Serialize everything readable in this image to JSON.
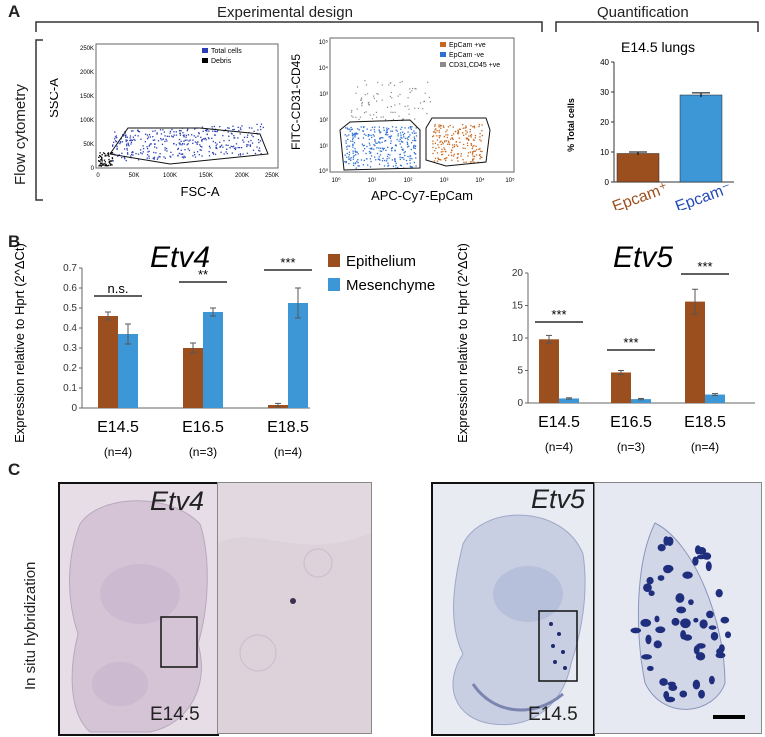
{
  "panel_a": {
    "letter": "A",
    "design_header": "Experimental design",
    "quant_header": "Quantification",
    "side_label": "Flow cytometry",
    "plot1": {
      "ylabel": "SSC-A",
      "xlabel": "FSC-A",
      "yticks": [
        "250K",
        "200K",
        "150K",
        "100K",
        "50K",
        "0"
      ],
      "xticks": [
        "0",
        "50K",
        "100K",
        "150K",
        "200K",
        "250K"
      ],
      "legend": [
        "Total cells",
        "Debris"
      ],
      "colors": {
        "total": "#2b3fb5",
        "debris": "#000000"
      }
    },
    "plot2": {
      "ylabel": "FITC-CD31-CD45",
      "xlabel": "APC-Cy7-EpCam",
      "yticks": [
        "10⁵",
        "10⁴",
        "10³",
        "10²",
        "10¹",
        "10⁰"
      ],
      "xticks": [
        "10⁰",
        "10¹",
        "10²",
        "10³",
        "10⁴",
        "10⁵"
      ],
      "legend": [
        "EpCam +ve",
        "EpCam -ve",
        "CD31,CD45 +ve"
      ],
      "colors": {
        "pos": "#c8661c",
        "neg": "#2e6fd0",
        "cd": "#8a8a8a"
      }
    }
  },
  "panel_b": {
    "letter": "B",
    "legend": [
      "Epithelium",
      "Mesenchyme"
    ],
    "colors": {
      "epithelium": "#9c4f1e",
      "mesenchyme": "#3d96d6"
    }
  },
  "panel_c": {
    "letter": "C",
    "side_label": "In situ hybridization",
    "left_title": "Etv4",
    "left_stage": "E14.5",
    "right_title": "Etv5",
    "right_stage": "E14.5"
  },
  "chart_data": [
    {
      "type": "bar",
      "title": "E14.5 lungs",
      "ylabel": "% Total cells",
      "categories": [
        "Epcam⁺",
        "Epcam⁻"
      ],
      "values": [
        9.5,
        29
      ],
      "errors": [
        0.5,
        0.7
      ],
      "colors": [
        "#9c4f1e",
        "#3d96d6"
      ],
      "category_colors": [
        "#9c4f1e",
        "#2249b8"
      ],
      "ylim": [
        0,
        40
      ],
      "yticks": [
        0,
        10,
        20,
        30,
        40
      ]
    },
    {
      "type": "bar",
      "title": "Etv4",
      "ylabel": "Expression relative to Hprt (2^ΔCt)",
      "categories": [
        "E14.5",
        "E16.5",
        "E18.5"
      ],
      "category_notes": [
        "(n=4)",
        "(n=3)",
        "(n=4)"
      ],
      "series": [
        {
          "name": "Epithelium",
          "values": [
            0.46,
            0.3,
            0.015
          ],
          "errors": [
            0.02,
            0.025,
            0.008
          ]
        },
        {
          "name": "Mesenchyme",
          "values": [
            0.37,
            0.48,
            0.525
          ],
          "errors": [
            0.05,
            0.02,
            0.075
          ]
        }
      ],
      "significance": [
        "n.s.",
        "**",
        "***"
      ],
      "ylim": [
        0,
        0.7
      ],
      "yticks": [
        "0",
        "0.1",
        "0.2",
        "0.3",
        "0.4",
        "0.5",
        "0.6",
        "0.7"
      ]
    },
    {
      "type": "bar",
      "title": "Etv5",
      "ylabel": "Expression relative to Hprt (2^ΔCt)",
      "categories": [
        "E14.5",
        "E16.5",
        "E18.5"
      ],
      "category_notes": [
        "(n=4)",
        "(n=3)",
        "(n=4)"
      ],
      "series": [
        {
          "name": "Epithelium",
          "values": [
            9.8,
            4.7,
            15.6
          ],
          "errors": [
            0.6,
            0.3,
            1.9
          ]
        },
        {
          "name": "Mesenchyme",
          "values": [
            0.7,
            0.6,
            1.3
          ],
          "errors": [
            0.1,
            0.1,
            0.15
          ]
        }
      ],
      "significance": [
        "***",
        "***",
        "***"
      ],
      "ylim": [
        0,
        20
      ],
      "yticks": [
        "0",
        "5",
        "10",
        "15",
        "20"
      ]
    }
  ]
}
